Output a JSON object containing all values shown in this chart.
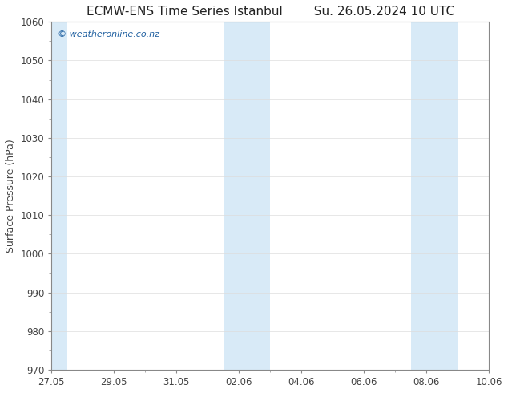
{
  "title": "ECMW-ENS Time Series Istanbul",
  "title2": "Su. 26.05.2024 10 UTC",
  "ylabel": "Surface Pressure (hPa)",
  "ylim": [
    970,
    1060
  ],
  "ytick_step": 10,
  "background_color": "#ffffff",
  "plot_bg_color": "#ffffff",
  "band_color": "#d8eaf7",
  "watermark": "© weatheronline.co.nz",
  "watermark_color": "#2060a0",
  "title_color": "#222222",
  "axis_color": "#888888",
  "tick_color": "#444444",
  "grid_color": "#dddddd",
  "xtick_labels": [
    "27.05",
    "29.05",
    "31.05",
    "02.06",
    "04.06",
    "06.06",
    "08.06",
    "10.06"
  ],
  "xtick_positions": [
    0,
    2,
    4,
    6,
    8,
    10,
    12,
    14
  ],
  "x_min": 0,
  "x_max": 14,
  "band_positions": [
    [
      -0.15,
      0.5
    ],
    [
      5.5,
      6.5
    ],
    [
      6.5,
      7.0
    ],
    [
      11.5,
      12.5
    ],
    [
      12.5,
      13.0
    ]
  ],
  "title_fontsize": 11,
  "label_fontsize": 9,
  "tick_fontsize": 8.5,
  "watermark_fontsize": 8
}
